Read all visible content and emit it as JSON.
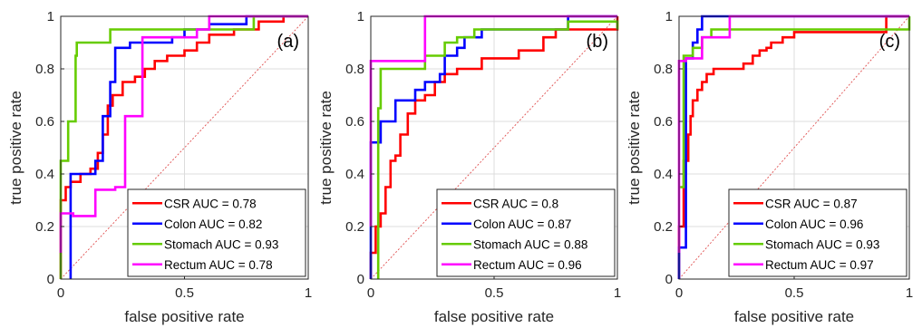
{
  "chart_data": [
    {
      "type": "line",
      "panel_label": "(a)",
      "xlabel": "false positive rate",
      "ylabel": "true positive rate",
      "xlim": [
        0,
        1
      ],
      "ylim": [
        0,
        1
      ],
      "x_ticks": [
        0,
        0.5,
        1
      ],
      "x_tick_labels": [
        "0",
        "0.5",
        "1"
      ],
      "y_ticks": [
        0,
        0.2,
        0.4,
        0.6,
        0.8,
        1
      ],
      "y_tick_labels": [
        "0",
        "0.2",
        "0.4",
        "0.6",
        "0.8",
        "1"
      ],
      "grid": true,
      "legend_position": "bottom-right",
      "diagonal": true,
      "series": [
        {
          "name": "CSR AUC = 0.78",
          "color": "#ff0000",
          "points": [
            [
              0,
              0
            ],
            [
              0,
              0.3
            ],
            [
              0.02,
              0.3
            ],
            [
              0.02,
              0.35
            ],
            [
              0.04,
              0.35
            ],
            [
              0.04,
              0.37
            ],
            [
              0.08,
              0.37
            ],
            [
              0.08,
              0.4
            ],
            [
              0.12,
              0.4
            ],
            [
              0.12,
              0.42
            ],
            [
              0.15,
              0.42
            ],
            [
              0.15,
              0.48
            ],
            [
              0.17,
              0.48
            ],
            [
              0.17,
              0.55
            ],
            [
              0.19,
              0.55
            ],
            [
              0.19,
              0.66
            ],
            [
              0.21,
              0.66
            ],
            [
              0.21,
              0.7
            ],
            [
              0.25,
              0.7
            ],
            [
              0.25,
              0.75
            ],
            [
              0.3,
              0.75
            ],
            [
              0.3,
              0.77
            ],
            [
              0.34,
              0.77
            ],
            [
              0.34,
              0.8
            ],
            [
              0.38,
              0.8
            ],
            [
              0.38,
              0.83
            ],
            [
              0.43,
              0.83
            ],
            [
              0.43,
              0.85
            ],
            [
              0.5,
              0.85
            ],
            [
              0.5,
              0.87
            ],
            [
              0.55,
              0.87
            ],
            [
              0.55,
              0.9
            ],
            [
              0.6,
              0.9
            ],
            [
              0.6,
              0.93
            ],
            [
              0.7,
              0.93
            ],
            [
              0.7,
              0.95
            ],
            [
              0.8,
              0.95
            ],
            [
              0.8,
              0.98
            ],
            [
              0.9,
              0.98
            ],
            [
              0.9,
              1
            ],
            [
              1,
              1
            ]
          ]
        },
        {
          "name": "Colon AUC = 0.82",
          "color": "#0000ff",
          "points": [
            [
              0.04,
              0
            ],
            [
              0.04,
              0.4
            ],
            [
              0.14,
              0.4
            ],
            [
              0.14,
              0.45
            ],
            [
              0.17,
              0.45
            ],
            [
              0.17,
              0.62
            ],
            [
              0.2,
              0.62
            ],
            [
              0.2,
              0.75
            ],
            [
              0.22,
              0.75
            ],
            [
              0.22,
              0.88
            ],
            [
              0.28,
              0.88
            ],
            [
              0.28,
              0.9
            ],
            [
              0.45,
              0.9
            ],
            [
              0.45,
              0.92
            ],
            [
              0.5,
              0.92
            ],
            [
              0.5,
              0.95
            ],
            [
              0.6,
              0.95
            ],
            [
              0.6,
              0.97
            ],
            [
              0.75,
              0.97
            ],
            [
              0.75,
              1
            ],
            [
              1,
              1
            ]
          ]
        },
        {
          "name": "Stomach AUC = 0.93",
          "color": "#66cc00",
          "points": [
            [
              0,
              0
            ],
            [
              0,
              0.45
            ],
            [
              0.03,
              0.45
            ],
            [
              0.03,
              0.6
            ],
            [
              0.06,
              0.6
            ],
            [
              0.06,
              0.85
            ],
            [
              0.065,
              0.85
            ],
            [
              0.065,
              0.9
            ],
            [
              0.2,
              0.9
            ],
            [
              0.2,
              0.95
            ],
            [
              0.78,
              0.95
            ],
            [
              0.78,
              1
            ],
            [
              1,
              1
            ]
          ]
        },
        {
          "name": "Rectum AUC = 0.78",
          "color": "#ff00ff",
          "points": [
            [
              0,
              0.1
            ],
            [
              0,
              0.25
            ],
            [
              0.05,
              0.25
            ],
            [
              0.05,
              0.24
            ],
            [
              0.14,
              0.24
            ],
            [
              0.14,
              0.34
            ],
            [
              0.22,
              0.34
            ],
            [
              0.22,
              0.35
            ],
            [
              0.26,
              0.35
            ],
            [
              0.26,
              0.62
            ],
            [
              0.33,
              0.62
            ],
            [
              0.33,
              0.92
            ],
            [
              0.55,
              0.92
            ],
            [
              0.55,
              0.95
            ],
            [
              0.6,
              0.95
            ],
            [
              0.6,
              1
            ],
            [
              1,
              1
            ]
          ]
        }
      ]
    },
    {
      "type": "line",
      "panel_label": "(b)",
      "xlabel": "false positive rate",
      "ylabel": "true positive rate",
      "xlim": [
        0,
        1
      ],
      "ylim": [
        0,
        1
      ],
      "x_ticks": [
        0,
        0.5,
        1
      ],
      "x_tick_labels": [
        "0",
        "0.5",
        "1"
      ],
      "y_ticks": [
        0,
        0.2,
        0.4,
        0.6,
        0.8,
        1
      ],
      "y_tick_labels": [
        "0",
        "0.2",
        "0.4",
        "0.6",
        "0.8",
        "1"
      ],
      "grid": true,
      "legend_position": "bottom-right",
      "diagonal": true,
      "series": [
        {
          "name": "CSR AUC = 0.8",
          "color": "#ff0000",
          "points": [
            [
              0,
              0
            ],
            [
              0,
              0.1
            ],
            [
              0.02,
              0.1
            ],
            [
              0.02,
              0.2
            ],
            [
              0.04,
              0.2
            ],
            [
              0.04,
              0.25
            ],
            [
              0.06,
              0.25
            ],
            [
              0.06,
              0.35
            ],
            [
              0.08,
              0.35
            ],
            [
              0.08,
              0.45
            ],
            [
              0.1,
              0.45
            ],
            [
              0.1,
              0.47
            ],
            [
              0.12,
              0.47
            ],
            [
              0.12,
              0.55
            ],
            [
              0.15,
              0.55
            ],
            [
              0.15,
              0.63
            ],
            [
              0.18,
              0.63
            ],
            [
              0.18,
              0.68
            ],
            [
              0.22,
              0.68
            ],
            [
              0.22,
              0.7
            ],
            [
              0.26,
              0.7
            ],
            [
              0.26,
              0.75
            ],
            [
              0.3,
              0.75
            ],
            [
              0.3,
              0.78
            ],
            [
              0.35,
              0.78
            ],
            [
              0.35,
              0.8
            ],
            [
              0.45,
              0.8
            ],
            [
              0.45,
              0.84
            ],
            [
              0.6,
              0.84
            ],
            [
              0.6,
              0.87
            ],
            [
              0.7,
              0.87
            ],
            [
              0.7,
              0.92
            ],
            [
              0.75,
              0.92
            ],
            [
              0.75,
              0.95
            ],
            [
              1,
              0.95
            ],
            [
              1,
              1
            ]
          ]
        },
        {
          "name": "Colon AUC = 0.87",
          "color": "#0000ff",
          "points": [
            [
              0,
              0
            ],
            [
              0,
              0.52
            ],
            [
              0.04,
              0.52
            ],
            [
              0.04,
              0.6
            ],
            [
              0.1,
              0.6
            ],
            [
              0.1,
              0.68
            ],
            [
              0.18,
              0.68
            ],
            [
              0.18,
              0.72
            ],
            [
              0.22,
              0.72
            ],
            [
              0.22,
              0.75
            ],
            [
              0.28,
              0.75
            ],
            [
              0.28,
              0.78
            ],
            [
              0.3,
              0.78
            ],
            [
              0.3,
              0.85
            ],
            [
              0.35,
              0.85
            ],
            [
              0.35,
              0.88
            ],
            [
              0.38,
              0.88
            ],
            [
              0.38,
              0.92
            ],
            [
              0.45,
              0.92
            ],
            [
              0.45,
              0.95
            ],
            [
              0.8,
              0.95
            ],
            [
              0.8,
              1
            ],
            [
              1,
              1
            ]
          ]
        },
        {
          "name": "Stomach AUC = 0.88",
          "color": "#66cc00",
          "points": [
            [
              0.03,
              0
            ],
            [
              0.03,
              0.65
            ],
            [
              0.04,
              0.65
            ],
            [
              0.04,
              0.8
            ],
            [
              0.22,
              0.8
            ],
            [
              0.22,
              0.85
            ],
            [
              0.3,
              0.85
            ],
            [
              0.3,
              0.9
            ],
            [
              0.35,
              0.9
            ],
            [
              0.35,
              0.92
            ],
            [
              0.42,
              0.92
            ],
            [
              0.42,
              0.95
            ],
            [
              0.8,
              0.95
            ],
            [
              0.8,
              0.98
            ],
            [
              1,
              0.98
            ],
            [
              1,
              0.95
            ]
          ]
        },
        {
          "name": "Rectum AUC = 0.96",
          "color": "#ff00ff",
          "points": [
            [
              0,
              0.2
            ],
            [
              0,
              0.83
            ],
            [
              0.22,
              0.83
            ],
            [
              0.22,
              1
            ],
            [
              1,
              1
            ]
          ]
        }
      ]
    },
    {
      "type": "line",
      "panel_label": "(c)",
      "xlabel": "false positive rate",
      "ylabel": "true positive rate",
      "xlim": [
        0,
        1
      ],
      "ylim": [
        0,
        1
      ],
      "x_ticks": [
        0,
        0.5,
        1
      ],
      "x_tick_labels": [
        "0",
        "0.5",
        "1"
      ],
      "y_ticks": [
        0,
        0.2,
        0.4,
        0.6,
        0.8,
        1
      ],
      "y_tick_labels": [
        "0",
        "0.2",
        "0.4",
        "0.6",
        "0.8",
        "1"
      ],
      "grid": true,
      "legend_position": "bottom-right",
      "diagonal": true,
      "series": [
        {
          "name": "CSR AUC = 0.87",
          "color": "#ff0000",
          "points": [
            [
              0,
              0
            ],
            [
              0,
              0.2
            ],
            [
              0.02,
              0.2
            ],
            [
              0.02,
              0.45
            ],
            [
              0.04,
              0.45
            ],
            [
              0.04,
              0.55
            ],
            [
              0.05,
              0.55
            ],
            [
              0.05,
              0.62
            ],
            [
              0.06,
              0.62
            ],
            [
              0.06,
              0.68
            ],
            [
              0.08,
              0.68
            ],
            [
              0.08,
              0.72
            ],
            [
              0.1,
              0.72
            ],
            [
              0.1,
              0.75
            ],
            [
              0.12,
              0.75
            ],
            [
              0.12,
              0.78
            ],
            [
              0.15,
              0.78
            ],
            [
              0.15,
              0.8
            ],
            [
              0.28,
              0.8
            ],
            [
              0.28,
              0.82
            ],
            [
              0.32,
              0.82
            ],
            [
              0.32,
              0.85
            ],
            [
              0.35,
              0.85
            ],
            [
              0.35,
              0.87
            ],
            [
              0.38,
              0.87
            ],
            [
              0.38,
              0.88
            ],
            [
              0.4,
              0.88
            ],
            [
              0.4,
              0.9
            ],
            [
              0.45,
              0.9
            ],
            [
              0.45,
              0.92
            ],
            [
              0.5,
              0.92
            ],
            [
              0.5,
              0.94
            ],
            [
              0.9,
              0.94
            ],
            [
              0.9,
              1
            ],
            [
              1,
              1
            ]
          ]
        },
        {
          "name": "Colon AUC = 0.96",
          "color": "#0000ff",
          "points": [
            [
              0,
              0
            ],
            [
              0,
              0.12
            ],
            [
              0.03,
              0.12
            ],
            [
              0.03,
              0.84
            ],
            [
              0.06,
              0.84
            ],
            [
              0.06,
              0.9
            ],
            [
              0.08,
              0.9
            ],
            [
              0.08,
              0.95
            ],
            [
              0.1,
              0.95
            ],
            [
              0.1,
              1
            ],
            [
              1,
              1
            ]
          ]
        },
        {
          "name": "Stomach AUC = 0.93",
          "color": "#66cc00",
          "points": [
            [
              0,
              0.35
            ],
            [
              0.02,
              0.35
            ],
            [
              0.02,
              0.85
            ],
            [
              0.06,
              0.85
            ],
            [
              0.06,
              0.88
            ],
            [
              0.1,
              0.88
            ],
            [
              0.1,
              0.92
            ],
            [
              0.14,
              0.92
            ],
            [
              0.14,
              0.95
            ],
            [
              1,
              0.95
            ],
            [
              1,
              1
            ]
          ]
        },
        {
          "name": "Rectum AUC = 0.97",
          "color": "#ff00ff",
          "points": [
            [
              0,
              0.1
            ],
            [
              0,
              0.83
            ],
            [
              0.03,
              0.83
            ],
            [
              0.03,
              0.84
            ],
            [
              0.1,
              0.84
            ],
            [
              0.1,
              0.92
            ],
            [
              0.22,
              0.92
            ],
            [
              0.22,
              1
            ],
            [
              1,
              1
            ]
          ]
        }
      ]
    }
  ]
}
